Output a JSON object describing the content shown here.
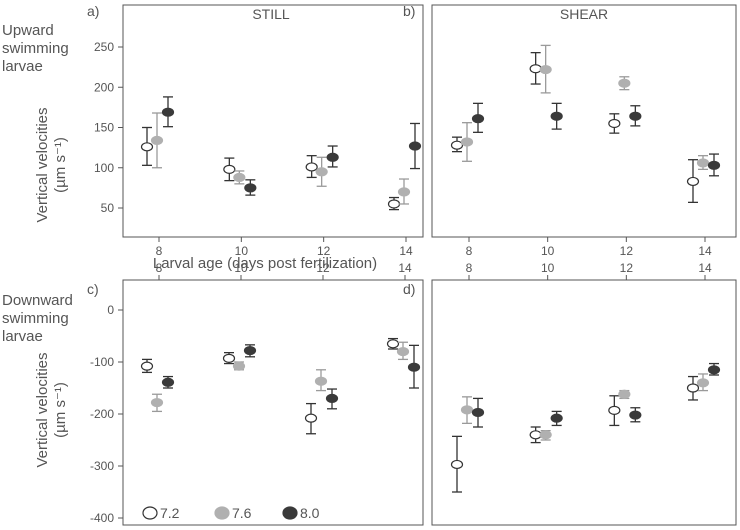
{
  "figure": {
    "shared_xlabel": "Larval age (days post fertilization)",
    "top_row_label": [
      "Upward",
      "swimming",
      "larvae"
    ],
    "bottom_row_label": [
      "Downward",
      "swimming",
      "larvae"
    ],
    "ylabel": "Vertical velocities",
    "yunit": "(µm s⁻¹)",
    "legend": [
      {
        "name": "7.2",
        "color": "#ffffff"
      },
      {
        "name": "7.6",
        "color": "#b0b0b0"
      },
      {
        "name": "8.0",
        "color": "#3a3a3a"
      }
    ],
    "colors": {
      "axis": "#555555",
      "errorbar": "#333333",
      "ph72_edge": "#333333",
      "ph76": "#b0b0b0",
      "ph80": "#3a3a3a"
    }
  },
  "chart_data": [
    {
      "panel": "a)",
      "title": "STILL",
      "type": "scatter",
      "x": [
        8,
        10,
        12,
        14
      ],
      "yticks": [
        50,
        100,
        150,
        200,
        250
      ],
      "ylim": [
        20,
        270
      ],
      "xlim": [
        7,
        15
      ],
      "series": [
        {
          "name": "7.2",
          "y": [
            126,
            98,
            101,
            55
          ],
          "err": [
            [
              103,
              150
            ],
            [
              84,
              112
            ],
            [
              88,
              115
            ],
            [
              48,
              63
            ]
          ]
        },
        {
          "name": "7.6",
          "y": [
            134,
            88,
            95,
            70
          ],
          "err": [
            [
              100,
              168
            ],
            [
              80,
              96
            ],
            [
              77,
              113
            ],
            [
              55,
              86
            ]
          ]
        },
        {
          "name": "8.0",
          "y": [
            169,
            75,
            113,
            127
          ],
          "err": [
            [
              151,
              188
            ],
            [
              66,
              85
            ],
            [
              101,
              127
            ],
            [
              99,
              155
            ]
          ]
        }
      ]
    },
    {
      "panel": "b)",
      "title": "SHEAR",
      "type": "scatter",
      "x": [
        8,
        10,
        12,
        14
      ],
      "yticks": [],
      "ylim": [
        20,
        270
      ],
      "xlim": [
        7,
        15
      ],
      "series": [
        {
          "name": "7.2",
          "y": [
            128,
            223,
            155,
            83
          ],
          "err": [
            [
              120,
              138
            ],
            [
              204,
              243
            ],
            [
              143,
              167
            ],
            [
              57,
              110
            ]
          ]
        },
        {
          "name": "7.6",
          "y": [
            132,
            222,
            205,
            106
          ],
          "err": [
            [
              108,
              156
            ],
            [
              193,
              252
            ],
            [
              197,
              213
            ],
            [
              98,
              115
            ]
          ]
        },
        {
          "name": "8.0",
          "y": [
            161,
            164,
            164,
            103
          ],
          "err": [
            [
              144,
              180
            ],
            [
              148,
              180
            ],
            [
              152,
              177
            ],
            [
              90,
              117
            ]
          ]
        }
      ]
    },
    {
      "panel": "c)",
      "type": "scatter",
      "x": [
        8,
        10,
        12,
        14
      ],
      "yticks": [
        0,
        -100,
        -200,
        -300,
        -400
      ],
      "ylim": [
        -430,
        30
      ],
      "xlim": [
        7,
        15
      ],
      "series": [
        {
          "name": "7.2",
          "y": [
            -108,
            -93,
            -208,
            -65
          ],
          "err": [
            [
              -120,
              -95
            ],
            [
              -103,
              -82
            ],
            [
              -238,
              -180
            ],
            [
              -75,
              -55
            ]
          ]
        },
        {
          "name": "7.6",
          "y": [
            -178,
            -108,
            -137,
            -80
          ],
          "err": [
            [
              -195,
              -162
            ],
            [
              -115,
              -100
            ],
            [
              -155,
              -115
            ],
            [
              -95,
              -62
            ]
          ]
        },
        {
          "name": "8.0",
          "y": [
            -139,
            -78,
            -170,
            -110
          ],
          "err": [
            [
              -150,
              -128
            ],
            [
              -90,
              -67
            ],
            [
              -190,
              -152
            ],
            [
              -150,
              -68
            ]
          ]
        }
      ]
    },
    {
      "panel": "d)",
      "type": "scatter",
      "x": [
        8,
        10,
        12,
        14
      ],
      "yticks": [],
      "ylim": [
        -430,
        30
      ],
      "xlim": [
        7,
        15
      ],
      "series": [
        {
          "name": "7.2",
          "y": [
            -297,
            -240,
            -193,
            -150
          ],
          "err": [
            [
              -350,
              -243
            ],
            [
              -255,
              -225
            ],
            [
              -222,
              -165
            ],
            [
              -173,
              -128
            ]
          ]
        },
        {
          "name": "7.6",
          "y": [
            -192,
            -240,
            -162,
            -140
          ],
          "err": [
            [
              -218,
              -167
            ],
            [
              -250,
              -232
            ],
            [
              -170,
              -155
            ],
            [
              -155,
              -123
            ]
          ]
        },
        {
          "name": "8.0",
          "y": [
            -197,
            -208,
            -202,
            -115
          ],
          "err": [
            [
              -225,
              -170
            ],
            [
              -222,
              -195
            ],
            [
              -215,
              -188
            ],
            [
              -125,
              -103
            ]
          ]
        }
      ]
    }
  ]
}
